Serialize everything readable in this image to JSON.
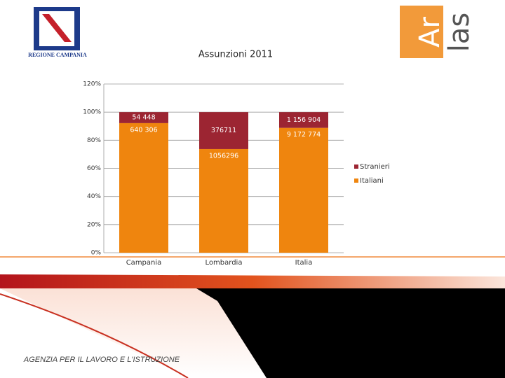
{
  "chart_data": {
    "type": "bar",
    "stacking": "percent",
    "title": "Assunzioni 2011",
    "categories": [
      "Campania",
      "Lombardia",
      "Italia"
    ],
    "series": [
      {
        "name": "Italiani",
        "color": "#ef850e",
        "values": [
          640306,
          1056296,
          9172774
        ],
        "value_labels": [
          "640 306",
          "1056296",
          "9 172 774"
        ]
      },
      {
        "name": "Stranieri",
        "color": "#9c2532",
        "values": [
          54448,
          376711,
          1156904
        ],
        "value_labels": [
          "54 448",
          "376711",
          "1 156 904"
        ]
      }
    ],
    "ylim": [
      0,
      120
    ],
    "yticks": [
      {
        "value": 0,
        "label": "0%"
      },
      {
        "value": 20,
        "label": "20%"
      },
      {
        "value": 40,
        "label": "40%"
      },
      {
        "value": 60,
        "label": "60%"
      },
      {
        "value": 80,
        "label": "80%"
      },
      {
        "value": 100,
        "label": "100%"
      },
      {
        "value": 120,
        "label": "120%"
      }
    ],
    "grid": true,
    "legend": "right"
  },
  "logos": {
    "left": "REGIONE CAMPANIA",
    "right_top": "Ar",
    "right_bottom": "las"
  },
  "footer": "AGENZIA PER IL LAVORO E L'ISTRUZIONE"
}
